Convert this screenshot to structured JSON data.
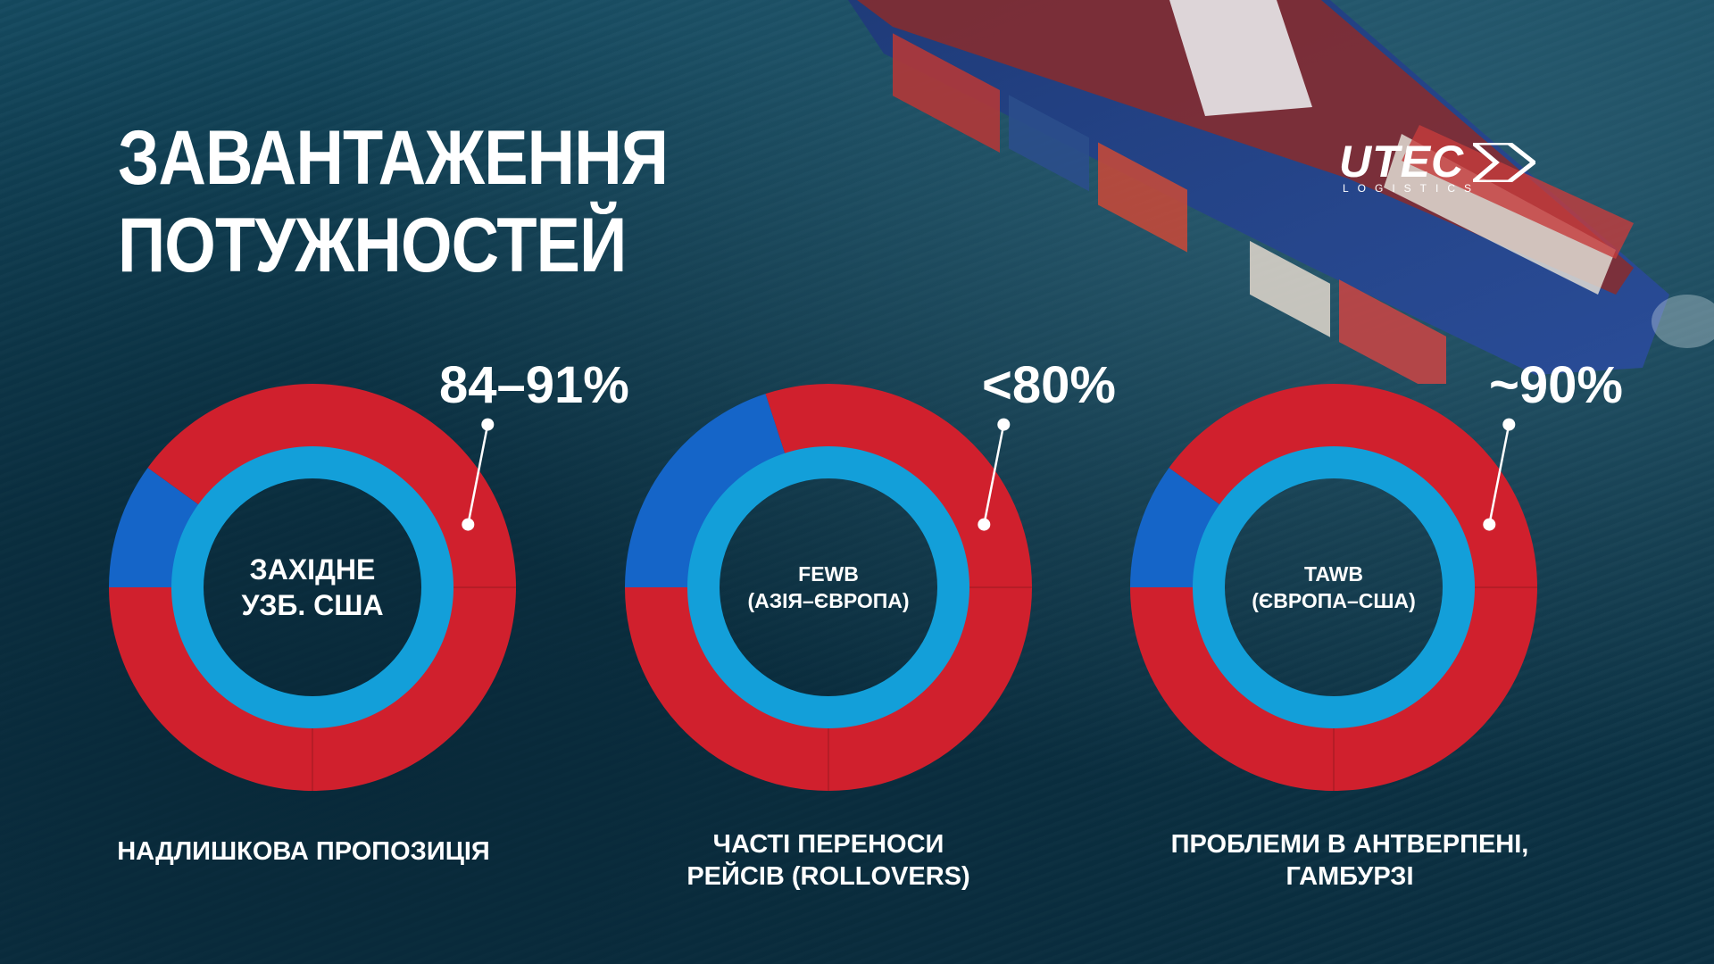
{
  "title": {
    "line1": "ЗАВАНТАЖЕННЯ",
    "line2": "ПОТУЖНОСТЕЙ"
  },
  "logo": {
    "main": "UTEC",
    "sub": "LOGISTICS"
  },
  "colors": {
    "utilization_red": "#d0202d",
    "spare_blue": "#1565c8",
    "inner_ring": "#139fd9",
    "background": "#0f3a4e"
  },
  "chart_data": [
    {
      "type": "pie",
      "label_line1": "ЗАХІДНЕ",
      "label_line2": "УЗБ. США",
      "value_label": "84–91%",
      "slices": [
        {
          "value": 90,
          "color": "#d0202d"
        },
        {
          "value": 10,
          "color": "#1565c8"
        }
      ],
      "caption_line1": "НАДЛИШКОВА ПРОПОЗИЦІЯ",
      "caption_line2": ""
    },
    {
      "type": "pie",
      "label_line1": "FEWB",
      "label_line2": "(АЗІЯ–ЄВРОПА)",
      "value_label": "<80%",
      "slices": [
        {
          "value": 80,
          "color": "#d0202d"
        },
        {
          "value": 20,
          "color": "#1565c8"
        }
      ],
      "caption_line1": "ЧАСТІ ПЕРЕНОСИ",
      "caption_line2": "РЕЙСІВ (ROLLOVERS)"
    },
    {
      "type": "pie",
      "label_line1": "TAWB",
      "label_line2": "(ЄВРОПА–США)",
      "value_label": "~90%",
      "slices": [
        {
          "value": 90,
          "color": "#d0202d"
        },
        {
          "value": 10,
          "color": "#1565c8"
        }
      ],
      "caption_line1": "ПРОБЛЕМИ В АНТВЕРПЕНІ,",
      "caption_line2": "ГАМБУРЗІ"
    }
  ]
}
